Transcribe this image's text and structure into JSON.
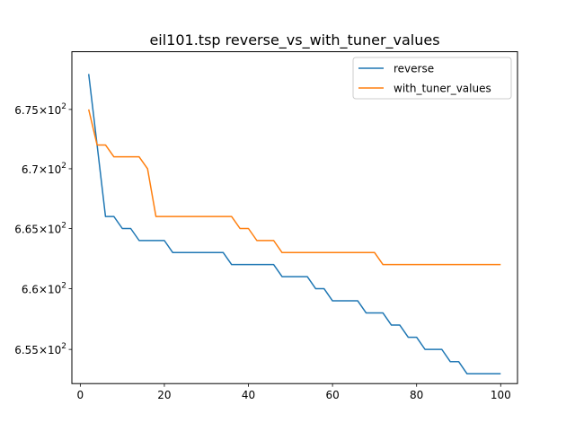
{
  "chart_data": {
    "type": "line",
    "title": "eil101.tsp  reverse_vs_with_tuner_values",
    "xlabel": "",
    "ylabel": "",
    "xlim": [
      -2,
      104
    ],
    "ylim": [
      652.2,
      679.9
    ],
    "yscale": "log",
    "grid": false,
    "legend_position": "upper right",
    "x_ticks": [
      0,
      20,
      40,
      60,
      80,
      100
    ],
    "x_tick_labels": [
      "0",
      "20",
      "40",
      "60",
      "80",
      "100"
    ],
    "y_ticks": [
      655,
      660,
      665,
      670,
      675
    ],
    "y_tick_labels": [
      {
        "mantissa": "6.55",
        "base": "10",
        "exp": "2"
      },
      {
        "mantissa": "6.6",
        "base": "10",
        "exp": "2"
      },
      {
        "mantissa": "6.65",
        "base": "10",
        "exp": "2"
      },
      {
        "mantissa": "6.7",
        "base": "10",
        "exp": "2"
      },
      {
        "mantissa": "6.75",
        "base": "10",
        "exp": "2"
      }
    ],
    "series": [
      {
        "name": "reverse",
        "color": "#1f77b4",
        "points": [
          [
            2,
            678
          ],
          [
            4,
            672
          ],
          [
            6,
            666
          ],
          [
            8,
            666
          ],
          [
            10,
            665
          ],
          [
            12,
            665
          ],
          [
            14,
            664
          ],
          [
            16,
            664
          ],
          [
            18,
            664
          ],
          [
            20,
            664
          ],
          [
            22,
            663
          ],
          [
            24,
            663
          ],
          [
            26,
            663
          ],
          [
            28,
            663
          ],
          [
            30,
            663
          ],
          [
            32,
            663
          ],
          [
            34,
            663
          ],
          [
            36,
            662
          ],
          [
            38,
            662
          ],
          [
            40,
            662
          ],
          [
            42,
            662
          ],
          [
            44,
            662
          ],
          [
            46,
            662
          ],
          [
            48,
            661
          ],
          [
            50,
            661
          ],
          [
            52,
            661
          ],
          [
            54,
            661
          ],
          [
            56,
            660
          ],
          [
            58,
            660
          ],
          [
            60,
            659
          ],
          [
            62,
            659
          ],
          [
            64,
            659
          ],
          [
            66,
            659
          ],
          [
            68,
            658
          ],
          [
            70,
            658
          ],
          [
            72,
            658
          ],
          [
            74,
            657
          ],
          [
            76,
            657
          ],
          [
            78,
            656
          ],
          [
            80,
            656
          ],
          [
            82,
            655
          ],
          [
            84,
            655
          ],
          [
            86,
            655
          ],
          [
            88,
            654
          ],
          [
            90,
            654
          ],
          [
            92,
            653
          ],
          [
            94,
            653
          ],
          [
            96,
            653
          ],
          [
            98,
            653
          ],
          [
            100,
            653
          ]
        ]
      },
      {
        "name": "with_tuner_values",
        "color": "#ff7f0e",
        "points": [
          [
            2,
            675
          ],
          [
            4,
            672
          ],
          [
            6,
            672
          ],
          [
            8,
            671
          ],
          [
            10,
            671
          ],
          [
            12,
            671
          ],
          [
            14,
            671
          ],
          [
            16,
            670
          ],
          [
            18,
            666
          ],
          [
            20,
            666
          ],
          [
            22,
            666
          ],
          [
            24,
            666
          ],
          [
            26,
            666
          ],
          [
            28,
            666
          ],
          [
            30,
            666
          ],
          [
            32,
            666
          ],
          [
            34,
            666
          ],
          [
            36,
            666
          ],
          [
            38,
            665
          ],
          [
            40,
            665
          ],
          [
            42,
            664
          ],
          [
            44,
            664
          ],
          [
            46,
            664
          ],
          [
            48,
            663
          ],
          [
            50,
            663
          ],
          [
            52,
            663
          ],
          [
            54,
            663
          ],
          [
            56,
            663
          ],
          [
            58,
            663
          ],
          [
            60,
            663
          ],
          [
            62,
            663
          ],
          [
            64,
            663
          ],
          [
            66,
            663
          ],
          [
            68,
            663
          ],
          [
            70,
            663
          ],
          [
            72,
            662
          ],
          [
            74,
            662
          ],
          [
            76,
            662
          ],
          [
            78,
            662
          ],
          [
            80,
            662
          ],
          [
            82,
            662
          ],
          [
            84,
            662
          ],
          [
            86,
            662
          ],
          [
            88,
            662
          ],
          [
            90,
            662
          ],
          [
            92,
            662
          ],
          [
            94,
            662
          ],
          [
            96,
            662
          ],
          [
            98,
            662
          ],
          [
            100,
            662
          ]
        ]
      }
    ]
  }
}
